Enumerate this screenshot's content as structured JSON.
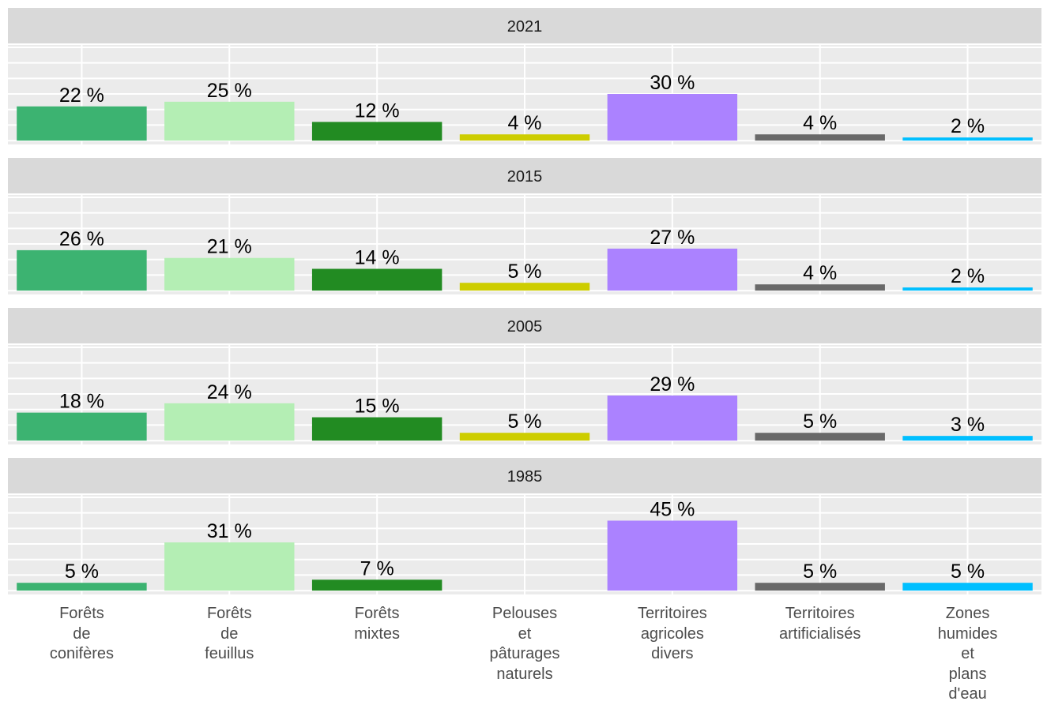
{
  "chart_data": {
    "type": "bar",
    "categories": [
      "Forêts\nde\nconifères",
      "Forêts\nde\nfeuillus",
      "Forêts\nmixtes",
      "Pelouses\net\npâturages\nnaturels",
      "Territoires\nagricoles\ndivers",
      "Territoires\nartificialisés",
      "Zones\nhumides\net\nplans\nd'eau"
    ],
    "colors": [
      "#3cb371",
      "#b4eeb4",
      "#228b22",
      "#cdcd00",
      "#ab82ff",
      "#696969",
      "#00bfff"
    ],
    "ylim": [
      -2.5,
      61.5
    ],
    "yticks": [
      0,
      10,
      20,
      30,
      40,
      50,
      60
    ],
    "grid": true,
    "panels": [
      {
        "title": "2021",
        "values": [
          22,
          25,
          12,
          4,
          30,
          4,
          2
        ],
        "value_labels": [
          "22 %",
          "25 %",
          "12 %",
          "4 %",
          "30 %",
          "4 %",
          "2 %"
        ]
      },
      {
        "title": "2015",
        "values": [
          26,
          21,
          14,
          5,
          27,
          4,
          2
        ],
        "value_labels": [
          "26 %",
          "21 %",
          "14 %",
          "5 %",
          "27 %",
          "4 %",
          "2 %"
        ]
      },
      {
        "title": "2005",
        "values": [
          18,
          24,
          15,
          5,
          29,
          5,
          3
        ],
        "value_labels": [
          "18 %",
          "24 %",
          "15 %",
          "5 %",
          "29 %",
          "5 %",
          "3 %"
        ]
      },
      {
        "title": "1985",
        "values": [
          5,
          31,
          7,
          null,
          45,
          5,
          5
        ],
        "value_labels": [
          "5 %",
          "31 %",
          "7 %",
          null,
          "45 %",
          "5 %",
          "5 %"
        ]
      }
    ]
  }
}
